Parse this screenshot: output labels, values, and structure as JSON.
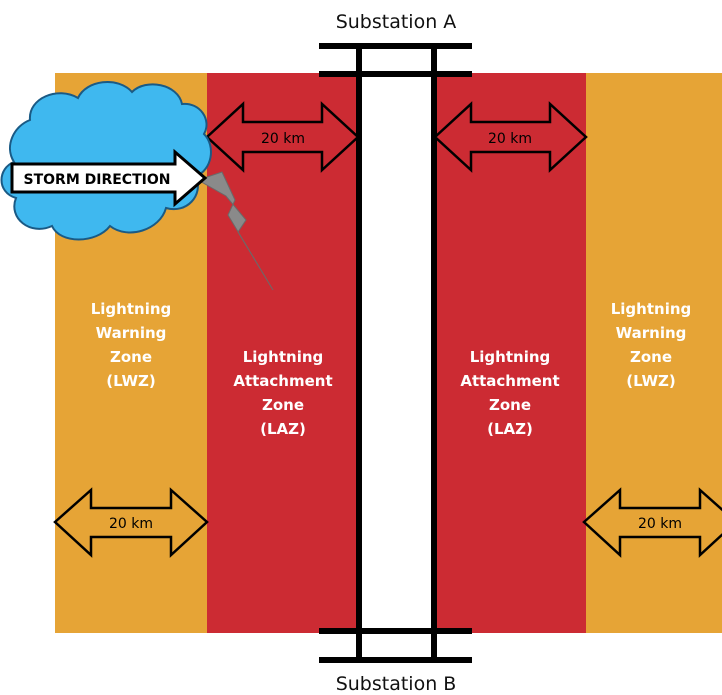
{
  "substations": {
    "top": "Substation A",
    "bottom": "Substation B"
  },
  "zones": {
    "lwz_left": [
      "Lightning",
      "Warning",
      "Zone",
      "(LWZ)"
    ],
    "laz_left": [
      "Lightning",
      "Attachment",
      "Zone",
      "(LAZ)"
    ],
    "laz_right": [
      "Lightning",
      "Attachment",
      "Zone",
      "(LAZ)"
    ],
    "lwz_right": [
      "Lightning",
      "Warning",
      "Zone",
      "(LWZ)"
    ]
  },
  "distances": {
    "laz_left": "20 km",
    "laz_right": "20 km",
    "lwz_left": "20 km",
    "lwz_right": "20 km"
  },
  "storm": {
    "label": "STORM DIRECTION"
  },
  "colors": {
    "warning_zone": "#E6A436",
    "attachment_zone": "#CC2B33",
    "cloud": "#3FB8EF",
    "corridor": "#FFFFFF",
    "line": "#000000",
    "bolt": "#8A8A8A"
  }
}
